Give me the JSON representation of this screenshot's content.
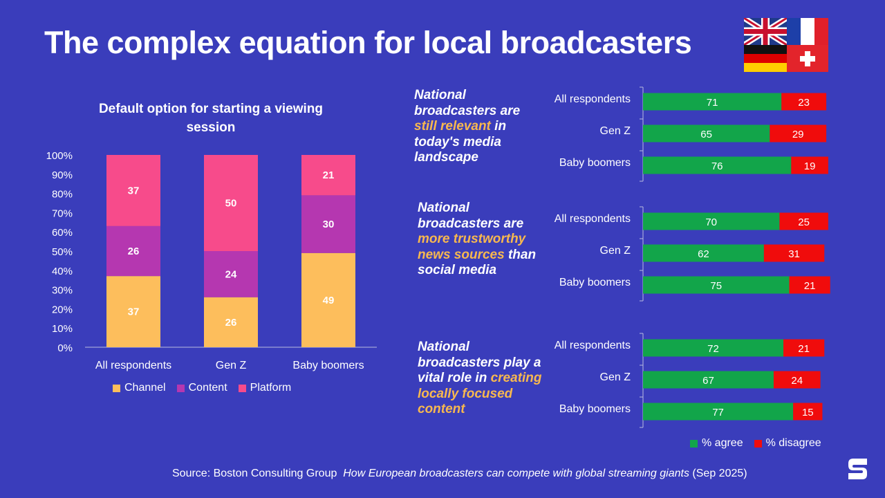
{
  "title": "The complex equation for local broadcasters",
  "flags": [
    "uk-flag-icon",
    "france-flag-icon",
    "germany-flag-icon",
    "switzerland-flag-icon"
  ],
  "left_chart_title": "Default option for starting a viewing session",
  "right_statements": [
    {
      "parts": [
        "National broadcasters are ",
        "still relevant",
        " in today's media landscape"
      ]
    },
    {
      "parts": [
        "National broadcasters are ",
        "more trustworthy news sources",
        " than social media"
      ]
    },
    {
      "parts": [
        "National broadcasters play a vital role in ",
        "creating locally focused content",
        ""
      ]
    }
  ],
  "colors": {
    "background": "#3a3dbb",
    "channel": "#fdbe5c",
    "content": "#b537b0",
    "platform": "#f74b8b",
    "agree": "#12a54a",
    "disagree": "#f00c0c",
    "highlight": "#f7b84f"
  },
  "chart_data": [
    {
      "type": "bar",
      "stacked": true,
      "title": "Default option for starting a viewing session",
      "categories": [
        "All respondents",
        "Gen Z",
        "Baby boomers"
      ],
      "series": [
        {
          "name": "Channel",
          "values": [
            37,
            26,
            49
          ]
        },
        {
          "name": "Content",
          "values": [
            26,
            24,
            30
          ]
        },
        {
          "name": "Platform",
          "values": [
            37,
            50,
            21
          ]
        }
      ],
      "ylim": [
        0,
        100
      ],
      "yticks": [
        "0%",
        "10%",
        "20%",
        "30%",
        "40%",
        "50%",
        "60%",
        "70%",
        "80%",
        "90%",
        "100%"
      ],
      "legend": "bottom"
    },
    {
      "type": "bar",
      "orientation": "horizontal",
      "stacked": true,
      "groups": [
        {
          "statement": "National broadcasters are still relevant in today's media landscape",
          "categories": [
            "All respondents",
            "Gen Z",
            "Baby boomers"
          ],
          "agree": [
            71,
            65,
            76
          ],
          "disagree": [
            23,
            29,
            19
          ]
        },
        {
          "statement": "National broadcasters are more trustworthy news sources than social media",
          "categories": [
            "All respondents",
            "Gen Z",
            "Baby boomers"
          ],
          "agree": [
            70,
            62,
            75
          ],
          "disagree": [
            25,
            31,
            21
          ]
        },
        {
          "statement": "National broadcasters play a vital role in creating locally focused content",
          "categories": [
            "All respondents",
            "Gen Z",
            "Baby boomers"
          ],
          "agree": [
            72,
            67,
            77
          ],
          "disagree": [
            21,
            24,
            15
          ]
        }
      ],
      "series": [
        {
          "name": "% agree"
        },
        {
          "name": "% disagree"
        }
      ],
      "legend": "bottom-right"
    }
  ],
  "source": {
    "prefix": "Source: Boston Consulting Group",
    "publication": "How European broadcasters can compete with global streaming giants",
    "date": "(Sep 2025)"
  },
  "logo_icon": "brand-s-logo-icon"
}
